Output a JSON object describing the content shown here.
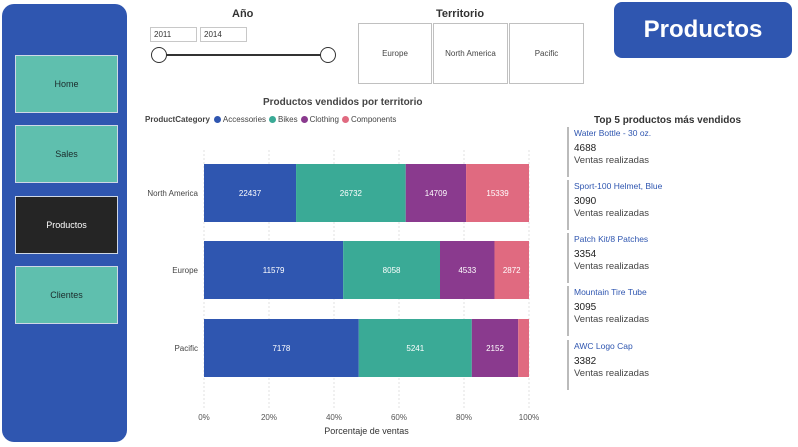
{
  "sidebar": {
    "items": [
      {
        "label": "Home",
        "active": false
      },
      {
        "label": "Sales",
        "active": false
      },
      {
        "label": "Productos",
        "active": true
      },
      {
        "label": "Clientes",
        "active": false
      }
    ]
  },
  "year_slicer": {
    "title": "Año",
    "start": "2011",
    "end": "2014"
  },
  "territory_slicer": {
    "title": "Territorio",
    "options": [
      "Europe",
      "North America",
      "Pacific"
    ]
  },
  "page_badge": "Productos",
  "colors": {
    "accent": "#2f56b0",
    "sidebar_button": "#5fbfae",
    "active_button": "#252525"
  },
  "chart_data": {
    "type": "bar",
    "orientation": "horizontal",
    "stacked": "percent",
    "title": "Productos vendidos por territorio",
    "legend_title": "ProductCategory",
    "legend_position": "top-left",
    "xlabel": "Porcentaje de ventas",
    "ylabel": "",
    "x_ticks": [
      "0%",
      "20%",
      "40%",
      "60%",
      "80%",
      "100%"
    ],
    "xlim": [
      0,
      100
    ],
    "categories": [
      "North America",
      "Europe",
      "Pacific"
    ],
    "series": [
      {
        "name": "Accessories",
        "color": "#2f56b0",
        "values": [
          22437,
          11579,
          7178
        ]
      },
      {
        "name": "Bikes",
        "color": "#3aaa96",
        "values": [
          26732,
          8058,
          5241
        ]
      },
      {
        "name": "Clothing",
        "color": "#8a3a8e",
        "values": [
          14709,
          4533,
          2152
        ]
      },
      {
        "name": "Components",
        "color": "#e06a80",
        "values": [
          15339,
          2872,
          500
        ]
      }
    ]
  },
  "top5": {
    "title": "Top 5 productos más vendidos",
    "items": [
      {
        "name": "Water Bottle - 30 oz.",
        "value": "4688",
        "label": "Ventas realizadas"
      },
      {
        "name": "Sport-100 Helmet, Blue",
        "value": "3090",
        "label": "Ventas realizadas"
      },
      {
        "name": "Patch Kit/8 Patches",
        "value": "3354",
        "label": "Ventas realizadas"
      },
      {
        "name": "Mountain Tire Tube",
        "value": "3095",
        "label": "Ventas realizadas"
      },
      {
        "name": "AWC Logo Cap",
        "value": "3382",
        "label": "Ventas realizadas"
      }
    ]
  }
}
